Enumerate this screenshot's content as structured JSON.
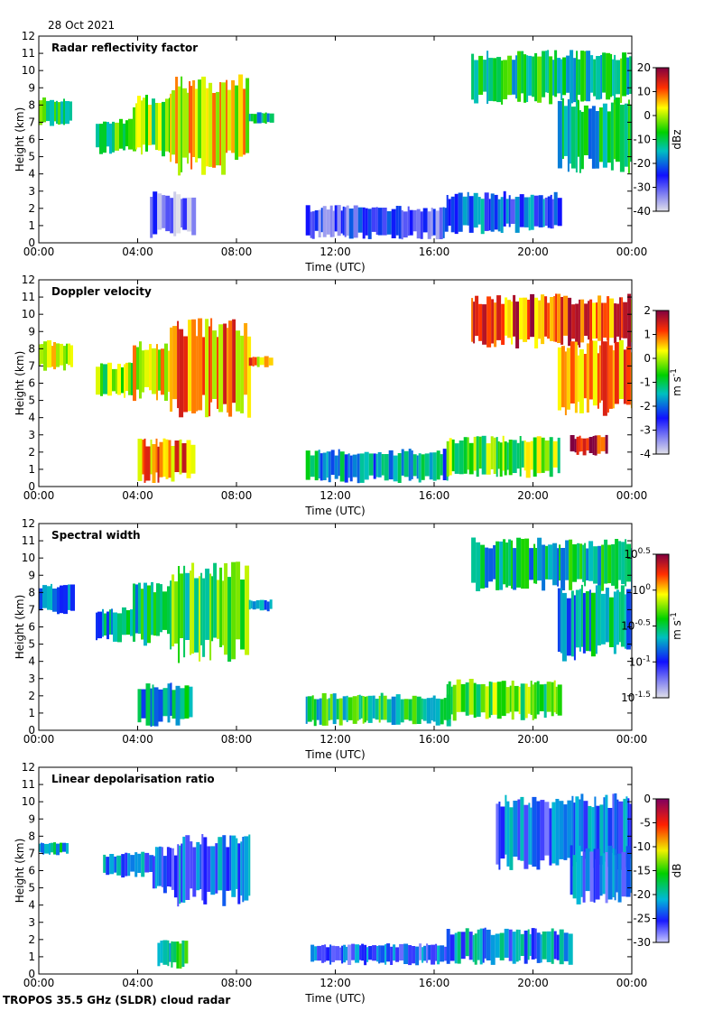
{
  "date": "28 Oct 2021",
  "footer": "TROPOS 35.5 GHz (SLDR) cloud radar",
  "chart_data": [
    {
      "type": "heatmap",
      "title": "Radar reflectivity factor",
      "xlabel": "Time (UTC)",
      "ylabel": "Height (km)",
      "xlim": [
        0,
        24
      ],
      "ylim": [
        0,
        12
      ],
      "x_tick_labels": [
        "00:00",
        "04:00",
        "08:00",
        "12:00",
        "16:00",
        "20:00",
        "00:00"
      ],
      "y_ticks": [
        0,
        1,
        2,
        3,
        4,
        5,
        6,
        7,
        8,
        9,
        10,
        11,
        12
      ],
      "colorbar": {
        "label": "dBz",
        "min": -40,
        "max": 20,
        "ticks": [
          "20",
          "10",
          "0",
          "-10",
          "-20",
          "-30",
          "-40"
        ]
      },
      "regions": [
        {
          "t0": 0.0,
          "t1": 1.3,
          "h0": 6.7,
          "h1": 8.5,
          "value": 0.5
        },
        {
          "t0": 2.3,
          "t1": 3.8,
          "h0": 5.1,
          "h1": 7.2,
          "value": 0.55
        },
        {
          "t0": 3.8,
          "t1": 5.3,
          "h0": 4.9,
          "h1": 8.6,
          "value": 0.6
        },
        {
          "t0": 5.3,
          "t1": 8.5,
          "h0": 3.9,
          "h1": 9.8,
          "value": 0.7
        },
        {
          "t0": 8.5,
          "t1": 9.4,
          "h0": 6.9,
          "h1": 7.6,
          "value": 0.45
        },
        {
          "t0": 4.5,
          "t1": 6.2,
          "h0": 0.2,
          "h1": 3.0,
          "value": 0.12
        },
        {
          "t0": 10.8,
          "t1": 16.5,
          "h0": 0.2,
          "h1": 2.2,
          "value": 0.2
        },
        {
          "t0": 16.5,
          "t1": 21.0,
          "h0": 0.5,
          "h1": 3.0,
          "value": 0.3
        },
        {
          "t0": 17.5,
          "t1": 24.0,
          "h0": 8.0,
          "h1": 11.2,
          "value": 0.5
        },
        {
          "t0": 21.0,
          "t1": 24.0,
          "h0": 4.0,
          "h1": 8.5,
          "value": 0.45
        }
      ]
    },
    {
      "type": "heatmap",
      "title": "Doppler velocity",
      "xlabel": "Time (UTC)",
      "ylabel": "Height (km)",
      "xlim": [
        0,
        24
      ],
      "ylim": [
        0,
        12
      ],
      "x_tick_labels": [
        "00:00",
        "04:00",
        "08:00",
        "12:00",
        "16:00",
        "20:00",
        "00:00"
      ],
      "y_ticks": [
        0,
        1,
        2,
        3,
        4,
        5,
        6,
        7,
        8,
        9,
        10,
        11,
        12
      ],
      "colorbar": {
        "label": "m s-1",
        "min": -4,
        "max": 2,
        "ticks": [
          "2",
          "1",
          "0",
          "-1",
          "-2",
          "-3",
          "-4"
        ]
      },
      "regions": [
        {
          "t0": 0.0,
          "t1": 1.3,
          "h0": 6.7,
          "h1": 8.5,
          "value": 0.68
        },
        {
          "t0": 2.3,
          "t1": 3.8,
          "h0": 5.1,
          "h1": 7.2,
          "value": 0.62
        },
        {
          "t0": 3.8,
          "t1": 5.3,
          "h0": 4.9,
          "h1": 8.6,
          "value": 0.72
        },
        {
          "t0": 5.3,
          "t1": 8.5,
          "h0": 3.9,
          "h1": 9.8,
          "value": 0.8
        },
        {
          "t0": 8.5,
          "t1": 9.4,
          "h0": 6.9,
          "h1": 7.6,
          "value": 0.78
        },
        {
          "t0": 4.0,
          "t1": 6.2,
          "h0": 0.2,
          "h1": 2.8,
          "value": 0.82
        },
        {
          "t0": 10.8,
          "t1": 16.5,
          "h0": 0.2,
          "h1": 2.2,
          "value": 0.4
        },
        {
          "t0": 16.5,
          "t1": 21.0,
          "h0": 0.5,
          "h1": 3.0,
          "value": 0.6
        },
        {
          "t0": 21.5,
          "t1": 23.0,
          "h0": 1.8,
          "h1": 3.0,
          "value": 0.95
        },
        {
          "t0": 17.5,
          "t1": 24.0,
          "h0": 8.0,
          "h1": 11.2,
          "value": 0.85
        },
        {
          "t0": 21.0,
          "t1": 24.0,
          "h0": 4.0,
          "h1": 8.5,
          "value": 0.8
        }
      ]
    },
    {
      "type": "heatmap",
      "title": "Spectral width",
      "xlabel": "Time (UTC)",
      "ylabel": "Height (km)",
      "xlim": [
        0,
        24
      ],
      "ylim": [
        0,
        12
      ],
      "x_tick_labels": [
        "00:00",
        "04:00",
        "08:00",
        "12:00",
        "16:00",
        "20:00",
        "00:00"
      ],
      "y_ticks": [
        0,
        1,
        2,
        3,
        4,
        5,
        6,
        7,
        8,
        9,
        10,
        11,
        12
      ],
      "colorbar": {
        "label": "m s-1",
        "scale": "log",
        "min": -1.5,
        "max": 0.5,
        "ticks": [
          "10^0.5",
          "10^0",
          "10^-0.5",
          "10^-1",
          "10^-1.5"
        ]
      },
      "regions": [
        {
          "t0": 0.0,
          "t1": 1.3,
          "h0": 6.7,
          "h1": 8.5,
          "value": 0.38
        },
        {
          "t0": 2.3,
          "t1": 3.8,
          "h0": 5.1,
          "h1": 7.2,
          "value": 0.4
        },
        {
          "t0": 3.8,
          "t1": 5.3,
          "h0": 4.9,
          "h1": 8.6,
          "value": 0.45
        },
        {
          "t0": 5.3,
          "t1": 8.5,
          "h0": 3.9,
          "h1": 9.8,
          "value": 0.55
        },
        {
          "t0": 8.5,
          "t1": 9.4,
          "h0": 6.9,
          "h1": 7.6,
          "value": 0.42
        },
        {
          "t0": 4.0,
          "t1": 6.2,
          "h0": 0.2,
          "h1": 2.8,
          "value": 0.42
        },
        {
          "t0": 10.8,
          "t1": 16.5,
          "h0": 0.2,
          "h1": 2.2,
          "value": 0.5
        },
        {
          "t0": 16.5,
          "t1": 21.0,
          "h0": 0.5,
          "h1": 3.0,
          "value": 0.58
        },
        {
          "t0": 17.5,
          "t1": 24.0,
          "h0": 8.0,
          "h1": 11.2,
          "value": 0.45
        },
        {
          "t0": 21.0,
          "t1": 24.0,
          "h0": 4.0,
          "h1": 8.5,
          "value": 0.42
        }
      ]
    },
    {
      "type": "heatmap",
      "title": "Linear depolarisation ratio",
      "xlabel": "Time (UTC)",
      "ylabel": "Height (km)",
      "xlim": [
        0,
        24
      ],
      "ylim": [
        0,
        12
      ],
      "x_tick_labels": [
        "00:00",
        "04:00",
        "08:00",
        "12:00",
        "16:00",
        "20:00",
        "00:00"
      ],
      "y_ticks": [
        0,
        1,
        2,
        3,
        4,
        5,
        6,
        7,
        8,
        9,
        10,
        11,
        12
      ],
      "colorbar": {
        "label": "dB",
        "min": -30,
        "max": 0,
        "ticks": [
          "0",
          "-5",
          "-10",
          "-15",
          "-20",
          "-25",
          "-30"
        ]
      },
      "regions": [
        {
          "t0": 0.0,
          "t1": 1.2,
          "h0": 6.9,
          "h1": 7.7,
          "value": 0.35
        },
        {
          "t0": 2.6,
          "t1": 4.6,
          "h0": 5.6,
          "h1": 7.1,
          "value": 0.22
        },
        {
          "t0": 4.6,
          "t1": 5.6,
          "h0": 4.4,
          "h1": 7.4,
          "value": 0.2
        },
        {
          "t0": 5.6,
          "t1": 8.5,
          "h0": 3.9,
          "h1": 8.2,
          "value": 0.2
        },
        {
          "t0": 4.8,
          "t1": 6.0,
          "h0": 0.3,
          "h1": 2.0,
          "value": 0.4
        },
        {
          "t0": 11.0,
          "t1": 16.5,
          "h0": 0.5,
          "h1": 1.8,
          "value": 0.18
        },
        {
          "t0": 16.5,
          "t1": 21.5,
          "h0": 0.5,
          "h1": 2.7,
          "value": 0.25
        },
        {
          "t0": 18.5,
          "t1": 24.0,
          "h0": 6.0,
          "h1": 10.5,
          "value": 0.2
        },
        {
          "t0": 21.5,
          "t1": 24.0,
          "h0": 4.0,
          "h1": 7.5,
          "value": 0.2
        }
      ]
    }
  ]
}
